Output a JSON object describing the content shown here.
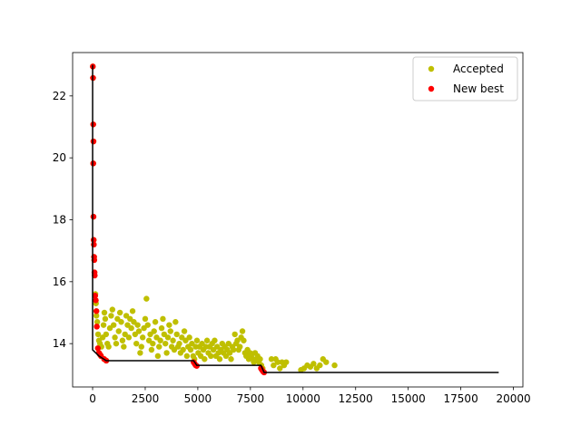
{
  "chart_data": {
    "type": "scatter",
    "title": "",
    "xlabel": "",
    "ylabel": "",
    "xlim": [
      -950,
      20450
    ],
    "ylim": [
      12.6,
      23.4
    ],
    "x_ticks": [
      0,
      2500,
      5000,
      7500,
      10000,
      12500,
      15000,
      17500,
      20000
    ],
    "y_ticks": [
      14,
      16,
      18,
      20,
      22
    ],
    "grid": false,
    "legend": {
      "position": "upper-right",
      "entries": [
        "Accepted",
        "New best"
      ]
    },
    "series": [
      {
        "name": "Accepted",
        "kind": "scatter",
        "color": "#bfbf00",
        "points": [
          [
            10,
            22.95
          ],
          [
            20,
            22.58
          ],
          [
            30,
            21.08
          ],
          [
            40,
            20.53
          ],
          [
            30,
            19.82
          ],
          [
            40,
            18.1
          ],
          [
            50,
            17.35
          ],
          [
            60,
            17.2
          ],
          [
            70,
            16.8
          ],
          [
            80,
            16.7
          ],
          [
            90,
            16.3
          ],
          [
            100,
            16.2
          ],
          [
            120,
            15.55
          ],
          [
            150,
            15.4
          ],
          [
            180,
            15.05
          ],
          [
            200,
            14.55
          ],
          [
            250,
            13.85
          ],
          [
            300,
            13.7
          ],
          [
            350,
            13.65
          ],
          [
            400,
            13.6
          ],
          [
            550,
            13.5
          ],
          [
            650,
            13.45
          ],
          [
            130,
            15.6
          ],
          [
            160,
            15.3
          ],
          [
            180,
            14.9
          ],
          [
            220,
            14.7
          ],
          [
            260,
            14.3
          ],
          [
            300,
            14.1
          ],
          [
            350,
            14.0
          ],
          [
            420,
            13.9
          ],
          [
            480,
            14.2
          ],
          [
            520,
            14.6
          ],
          [
            560,
            15.0
          ],
          [
            600,
            14.8
          ],
          [
            640,
            14.3
          ],
          [
            700,
            14.0
          ],
          [
            760,
            13.9
          ],
          [
            820,
            14.5
          ],
          [
            880,
            14.9
          ],
          [
            940,
            15.1
          ],
          [
            1000,
            14.6
          ],
          [
            1060,
            14.2
          ],
          [
            1120,
            14.0
          ],
          [
            1180,
            14.8
          ],
          [
            1240,
            14.4
          ],
          [
            1300,
            15.0
          ],
          [
            1360,
            14.7
          ],
          [
            1420,
            14.1
          ],
          [
            1480,
            13.9
          ],
          [
            1540,
            14.3
          ],
          [
            1600,
            14.9
          ],
          [
            1660,
            14.6
          ],
          [
            1720,
            14.2
          ],
          [
            1780,
            14.8
          ],
          [
            1840,
            14.5
          ],
          [
            1900,
            15.05
          ],
          [
            1960,
            14.7
          ],
          [
            2020,
            14.3
          ],
          [
            2080,
            14.0
          ],
          [
            2140,
            14.6
          ],
          [
            2200,
            14.4
          ],
          [
            2260,
            13.7
          ],
          [
            2320,
            13.9
          ],
          [
            2380,
            14.2
          ],
          [
            2440,
            14.5
          ],
          [
            2500,
            14.8
          ],
          [
            2560,
            15.45
          ],
          [
            2620,
            14.6
          ],
          [
            2680,
            14.1
          ],
          [
            2740,
            14.3
          ],
          [
            2800,
            13.8
          ],
          [
            2860,
            14.0
          ],
          [
            2920,
            14.4
          ],
          [
            2980,
            14.7
          ],
          [
            3040,
            14.2
          ],
          [
            3100,
            13.6
          ],
          [
            3160,
            13.9
          ],
          [
            3220,
            14.1
          ],
          [
            3280,
            14.5
          ],
          [
            3340,
            14.8
          ],
          [
            3400,
            14.3
          ],
          [
            3460,
            14.0
          ],
          [
            3520,
            13.7
          ],
          [
            3580,
            14.2
          ],
          [
            3640,
            14.6
          ],
          [
            3700,
            14.4
          ],
          [
            3760,
            13.9
          ],
          [
            3820,
            14.1
          ],
          [
            3880,
            13.8
          ],
          [
            3940,
            14.7
          ],
          [
            4000,
            14.3
          ],
          [
            4060,
            13.9
          ],
          [
            4120,
            14.0
          ],
          [
            4180,
            13.7
          ],
          [
            4240,
            14.2
          ],
          [
            4300,
            13.8
          ],
          [
            4360,
            14.4
          ],
          [
            4420,
            14.1
          ],
          [
            4480,
            13.6
          ],
          [
            4540,
            13.9
          ],
          [
            4600,
            14.2
          ],
          [
            4660,
            13.8
          ],
          [
            4720,
            14.0
          ],
          [
            4780,
            13.6
          ],
          [
            4840,
            13.5
          ],
          [
            4900,
            13.9
          ],
          [
            4960,
            14.1
          ],
          [
            5020,
            13.7
          ],
          [
            5080,
            13.9
          ],
          [
            5140,
            13.6
          ],
          [
            5200,
            14.0
          ],
          [
            5260,
            13.8
          ],
          [
            5320,
            13.5
          ],
          [
            5380,
            13.9
          ],
          [
            5440,
            14.1
          ],
          [
            5500,
            13.7
          ],
          [
            5560,
            13.9
          ],
          [
            5620,
            13.6
          ],
          [
            5680,
            14.0
          ],
          [
            5740,
            13.8
          ],
          [
            5800,
            14.1
          ],
          [
            5860,
            13.6
          ],
          [
            5920,
            13.9
          ],
          [
            5980,
            13.7
          ],
          [
            6040,
            13.5
          ],
          [
            6100,
            13.8
          ],
          [
            6160,
            14.0
          ],
          [
            6220,
            13.7
          ],
          [
            6280,
            13.9
          ],
          [
            6340,
            13.6
          ],
          [
            6400,
            13.8
          ],
          [
            6460,
            14.0
          ],
          [
            6520,
            13.7
          ],
          [
            6580,
            13.5
          ],
          [
            6640,
            13.9
          ],
          [
            6700,
            13.8
          ],
          [
            6760,
            14.3
          ],
          [
            6820,
            14.0
          ],
          [
            6880,
            14.1
          ],
          [
            6940,
            13.8
          ],
          [
            7000,
            13.9
          ],
          [
            7060,
            14.2
          ],
          [
            7120,
            14.4
          ],
          [
            7180,
            14.1
          ],
          [
            7240,
            13.7
          ],
          [
            7300,
            13.6
          ],
          [
            7360,
            13.8
          ],
          [
            7420,
            13.5
          ],
          [
            7480,
            13.7
          ],
          [
            7540,
            13.6
          ],
          [
            7600,
            13.5
          ],
          [
            7660,
            13.4
          ],
          [
            7720,
            13.7
          ],
          [
            7780,
            13.5
          ],
          [
            7840,
            13.6
          ],
          [
            7900,
            13.4
          ],
          [
            7960,
            13.5
          ],
          [
            8020,
            13.3
          ],
          [
            8080,
            13.2
          ],
          [
            8500,
            13.5
          ],
          [
            8600,
            13.3
          ],
          [
            8700,
            13.5
          ],
          [
            8800,
            13.4
          ],
          [
            8900,
            13.2
          ],
          [
            9000,
            13.4
          ],
          [
            9100,
            13.3
          ],
          [
            9200,
            13.4
          ],
          [
            9900,
            13.15
          ],
          [
            10050,
            13.2
          ],
          [
            10200,
            13.3
          ],
          [
            10350,
            13.25
          ],
          [
            10500,
            13.35
          ],
          [
            10650,
            13.2
          ],
          [
            10800,
            13.3
          ],
          [
            10950,
            13.5
          ],
          [
            11100,
            13.4
          ],
          [
            11500,
            13.3
          ]
        ]
      },
      {
        "name": "New best",
        "kind": "scatter",
        "color": "#ff0000",
        "points": [
          [
            10,
            22.95
          ],
          [
            20,
            22.58
          ],
          [
            30,
            21.08
          ],
          [
            40,
            20.53
          ],
          [
            30,
            19.82
          ],
          [
            40,
            18.1
          ],
          [
            50,
            17.35
          ],
          [
            60,
            17.2
          ],
          [
            70,
            16.8
          ],
          [
            80,
            16.7
          ],
          [
            90,
            16.3
          ],
          [
            100,
            16.2
          ],
          [
            120,
            15.55
          ],
          [
            150,
            15.4
          ],
          [
            180,
            15.05
          ],
          [
            200,
            14.55
          ],
          [
            250,
            13.85
          ],
          [
            300,
            13.7
          ],
          [
            350,
            13.65
          ],
          [
            400,
            13.6
          ],
          [
            550,
            13.5
          ],
          [
            650,
            13.45
          ],
          [
            4800,
            13.4
          ],
          [
            4850,
            13.35
          ],
          [
            4900,
            13.3
          ],
          [
            4950,
            13.28
          ],
          [
            8000,
            13.2
          ],
          [
            8050,
            13.15
          ],
          [
            8100,
            13.1
          ],
          [
            8150,
            13.07
          ]
        ]
      },
      {
        "name": "",
        "kind": "step-line",
        "color": "#000000",
        "points": [
          [
            0,
            23.0
          ],
          [
            0,
            13.8
          ],
          [
            300,
            13.6
          ],
          [
            650,
            13.45
          ],
          [
            4800,
            13.45
          ],
          [
            4950,
            13.3
          ],
          [
            8000,
            13.3
          ],
          [
            8150,
            13.07
          ],
          [
            19300,
            13.07
          ]
        ]
      }
    ]
  }
}
